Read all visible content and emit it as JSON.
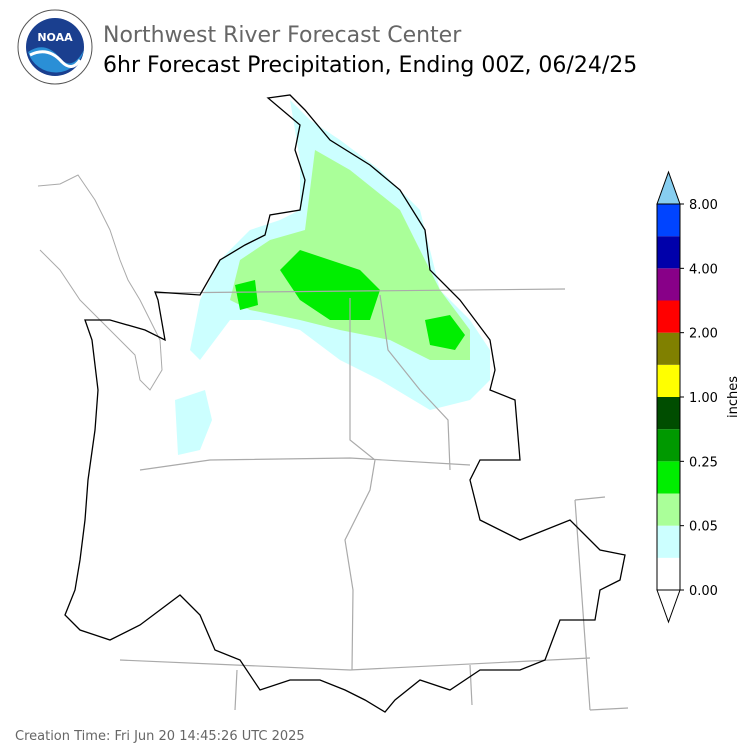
{
  "header": {
    "logo_text": "NOAA",
    "title": "Northwest River Forecast Center",
    "subtitle": "6hr Forecast Precipitation, Ending 00Z, 06/24/25"
  },
  "legend": {
    "unit": "inches",
    "labels": [
      "0.00",
      "0.05",
      "0.25",
      "1.00",
      "2.00",
      "4.00",
      "8.00"
    ],
    "colors": [
      "#ffffff",
      "#ccffff",
      "#aaff99",
      "#00ee00",
      "#009900",
      "#004d00",
      "#ffff00",
      "#808000",
      "#ff0000",
      "#880088",
      "#0000aa",
      "#0044ff"
    ],
    "over_color": "#87cef0",
    "under_color": "#ffffff"
  },
  "footer": {
    "creation_time": "Creation Time: Fri Jun 20 14:45:26 UTC 2025"
  }
}
